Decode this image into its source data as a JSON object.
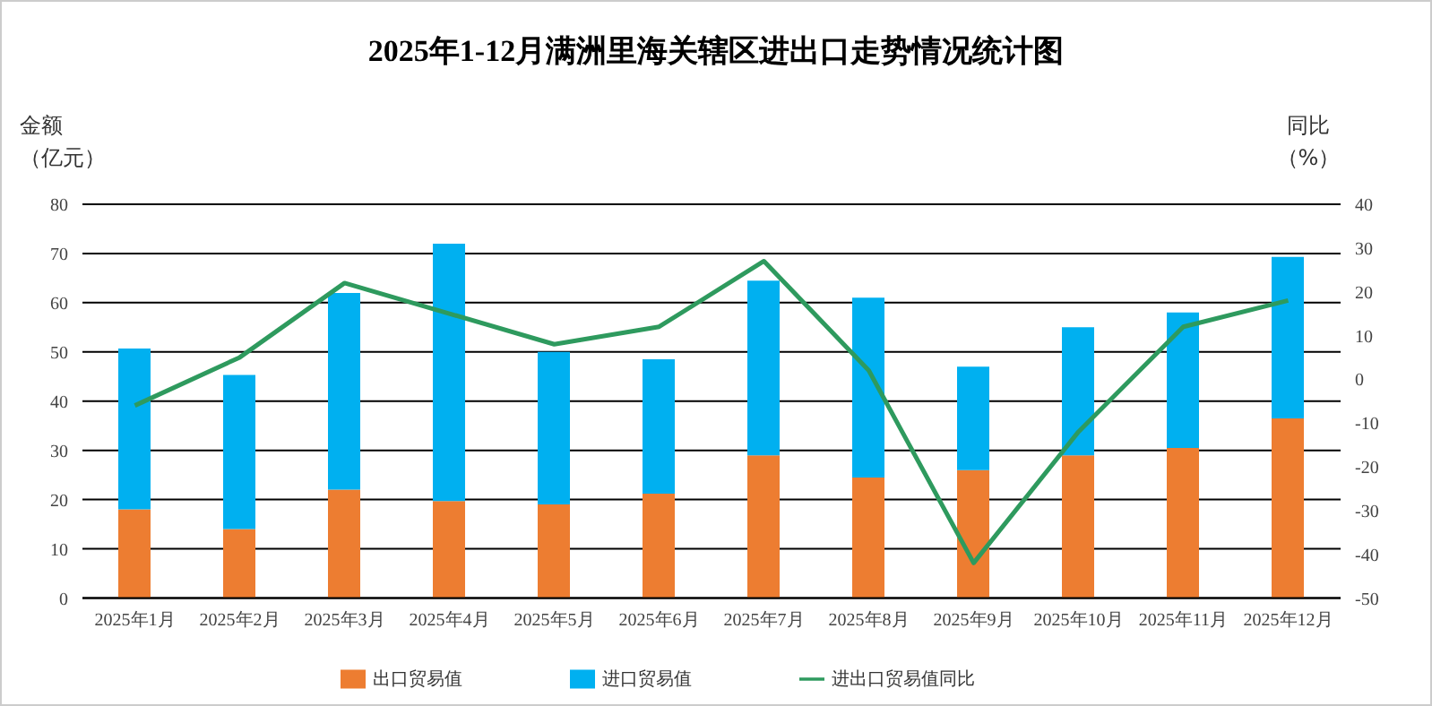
{
  "chart_data": {
    "type": "bar",
    "title": "2025年1-12月满洲里海关辖区进出口走势情况统计图",
    "ylabel": "金额（亿元）",
    "y2label": "同比（%）",
    "categories": [
      "2025年1月",
      "2025年2月",
      "2025年3月",
      "2025年4月",
      "2025年5月",
      "2025年6月",
      "2025年7月",
      "2025年8月",
      "2025年9月",
      "2025年10月",
      "2025年11月",
      "2025年12月"
    ],
    "stacked": true,
    "series": [
      {
        "name": "出口贸易值",
        "color": "#ed7d31",
        "values": [
          18,
          14,
          22,
          19.7,
          19,
          21.2,
          29,
          24.5,
          26,
          29,
          30.5,
          36.5
        ]
      },
      {
        "name": "进口贸易值",
        "color": "#00b0f0",
        "values": [
          32.7,
          31.3,
          40,
          52.3,
          31,
          27.3,
          35.5,
          36.5,
          21,
          26,
          27.5,
          32.8
        ]
      },
      {
        "name": "进出口贸易值同比",
        "type": "line",
        "axis": "y2",
        "color": "#2e9a5e",
        "values": [
          -6,
          5,
          22,
          15,
          8,
          12,
          27,
          2,
          -42,
          -12,
          12,
          18
        ]
      }
    ],
    "ylim": [
      0,
      80
    ],
    "yticks": [
      0,
      10,
      20,
      30,
      40,
      50,
      60,
      70,
      80
    ],
    "y2lim": [
      -50,
      40
    ],
    "y2ticks": [
      -50,
      -40,
      -30,
      -20,
      -10,
      0,
      10,
      20,
      30,
      40
    ],
    "grid": "y",
    "legend": "bottom",
    "marker": "none"
  }
}
